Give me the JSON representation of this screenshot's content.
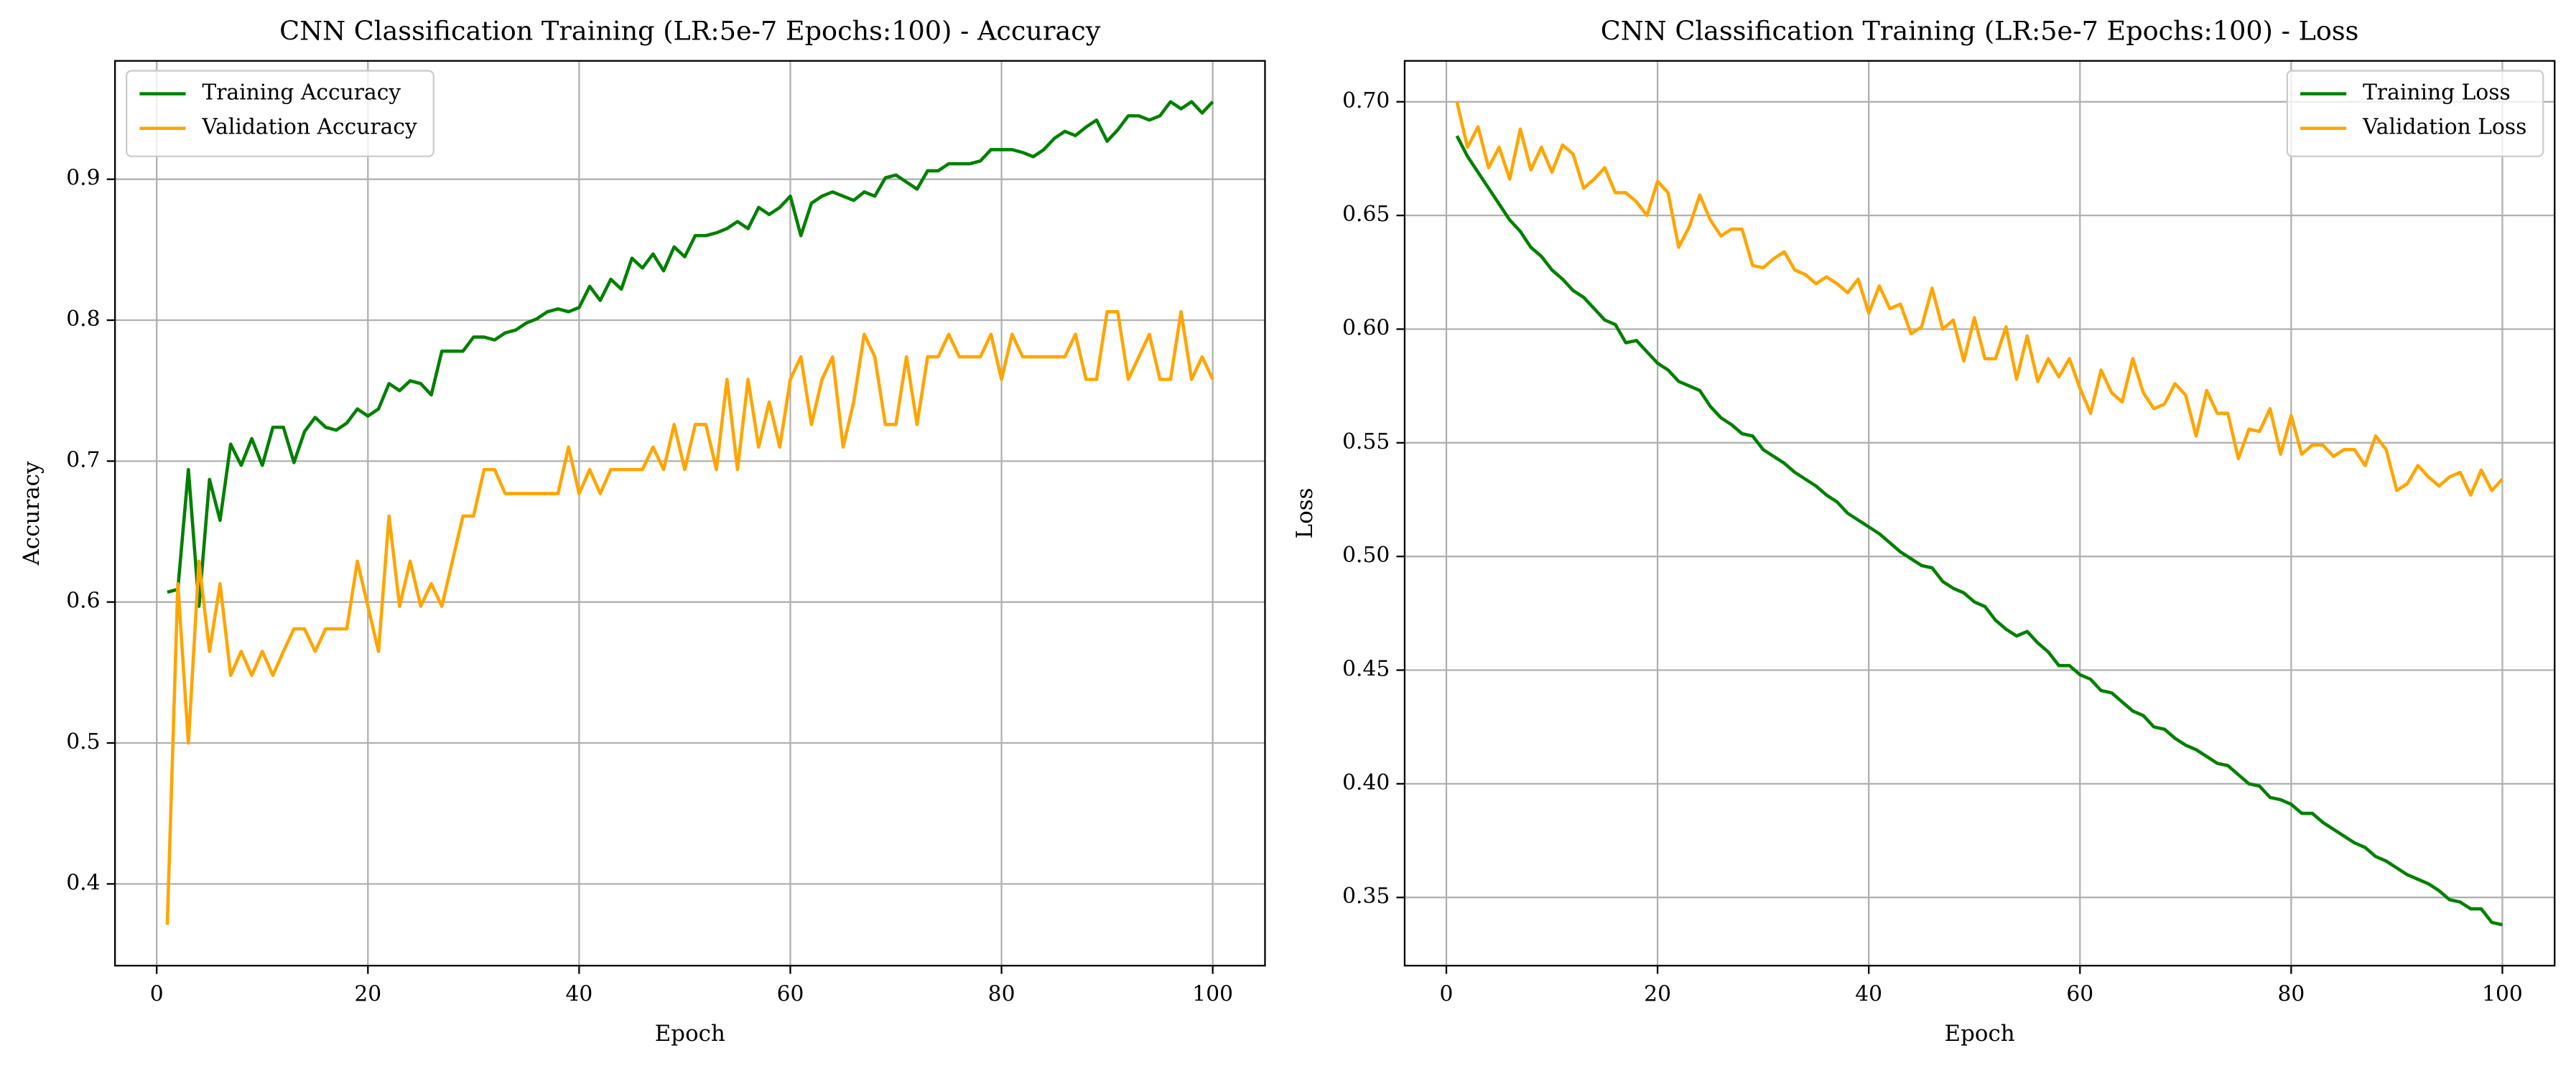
{
  "chart_data": [
    {
      "type": "line",
      "title": "CNN Classification Training (LR:5e-7 Epochs:100) - Accuracy",
      "xlabel": "Epoch",
      "ylabel": "Accuracy",
      "x": [
        1,
        2,
        3,
        4,
        5,
        6,
        7,
        8,
        9,
        10,
        11,
        12,
        13,
        14,
        15,
        16,
        17,
        18,
        19,
        20,
        21,
        22,
        23,
        24,
        25,
        26,
        27,
        28,
        29,
        30,
        31,
        32,
        33,
        34,
        35,
        36,
        37,
        38,
        39,
        40,
        41,
        42,
        43,
        44,
        45,
        46,
        47,
        48,
        49,
        50,
        51,
        52,
        53,
        54,
        55,
        56,
        57,
        58,
        59,
        60,
        61,
        62,
        63,
        64,
        65,
        66,
        67,
        68,
        69,
        70,
        71,
        72,
        73,
        74,
        75,
        76,
        77,
        78,
        79,
        80,
        81,
        82,
        83,
        84,
        85,
        86,
        87,
        88,
        89,
        90,
        91,
        92,
        93,
        94,
        95,
        96,
        97,
        98,
        99,
        100
      ],
      "series": [
        {
          "name": "Training Accuracy",
          "color": "#008000",
          "values": [
            0.607,
            0.609,
            0.694,
            0.597,
            0.687,
            0.658,
            0.712,
            0.697,
            0.716,
            0.697,
            0.724,
            0.724,
            0.699,
            0.721,
            0.731,
            0.724,
            0.722,
            0.727,
            0.737,
            0.732,
            0.737,
            0.755,
            0.75,
            0.757,
            0.755,
            0.747,
            0.778,
            0.778,
            0.778,
            0.788,
            0.788,
            0.786,
            0.791,
            0.793,
            0.798,
            0.801,
            0.806,
            0.808,
            0.806,
            0.809,
            0.824,
            0.814,
            0.829,
            0.822,
            0.844,
            0.837,
            0.847,
            0.835,
            0.852,
            0.845,
            0.86,
            0.86,
            0.862,
            0.865,
            0.87,
            0.865,
            0.88,
            0.875,
            0.88,
            0.888,
            0.86,
            0.883,
            0.888,
            0.891,
            0.888,
            0.885,
            0.891,
            0.888,
            0.901,
            0.903,
            0.898,
            0.893,
            0.906,
            0.906,
            0.911,
            0.911,
            0.911,
            0.913,
            0.921,
            0.921,
            0.921,
            0.919,
            0.916,
            0.921,
            0.929,
            0.934,
            0.931,
            0.937,
            0.942,
            0.927,
            0.935,
            0.945,
            0.945,
            0.942,
            0.945,
            0.955,
            0.95,
            0.955,
            0.947,
            0.955
          ]
        },
        {
          "name": "Validation Accuracy",
          "color": "#ffa500",
          "values": [
            0.371,
            0.613,
            0.5,
            0.629,
            0.565,
            0.613,
            0.548,
            0.565,
            0.548,
            0.565,
            0.548,
            0.565,
            0.581,
            0.581,
            0.565,
            0.581,
            0.581,
            0.581,
            0.629,
            0.597,
            0.565,
            0.661,
            0.597,
            0.629,
            0.597,
            0.613,
            0.597,
            0.629,
            0.661,
            0.661,
            0.694,
            0.694,
            0.677,
            0.677,
            0.677,
            0.677,
            0.677,
            0.677,
            0.71,
            0.677,
            0.694,
            0.677,
            0.694,
            0.694,
            0.694,
            0.694,
            0.71,
            0.694,
            0.726,
            0.694,
            0.726,
            0.726,
            0.694,
            0.758,
            0.694,
            0.758,
            0.71,
            0.742,
            0.71,
            0.758,
            0.774,
            0.726,
            0.758,
            0.774,
            0.71,
            0.742,
            0.79,
            0.774,
            0.726,
            0.726,
            0.774,
            0.726,
            0.774,
            0.774,
            0.79,
            0.774,
            0.774,
            0.774,
            0.79,
            0.758,
            0.79,
            0.774,
            0.774,
            0.774,
            0.774,
            0.774,
            0.79,
            0.758,
            0.758,
            0.806,
            0.806,
            0.758,
            0.774,
            0.79,
            0.758,
            0.758,
            0.806,
            0.758,
            0.774,
            0.758
          ]
        }
      ],
      "xlim": [
        -3.95,
        104.95
      ],
      "xticks": [
        0,
        20,
        40,
        60,
        80,
        100
      ],
      "ylim": [
        0.342,
        0.984
      ],
      "yticks": [
        0.4,
        0.5,
        0.6,
        0.7,
        0.8,
        0.9
      ],
      "grid": true,
      "legend": "upper-left"
    },
    {
      "type": "line",
      "title": "CNN Classification Training (LR:5e-7 Epochs:100) - Loss",
      "xlabel": "Epoch",
      "ylabel": "Loss",
      "x": [
        1,
        2,
        3,
        4,
        5,
        6,
        7,
        8,
        9,
        10,
        11,
        12,
        13,
        14,
        15,
        16,
        17,
        18,
        19,
        20,
        21,
        22,
        23,
        24,
        25,
        26,
        27,
        28,
        29,
        30,
        31,
        32,
        33,
        34,
        35,
        36,
        37,
        38,
        39,
        40,
        41,
        42,
        43,
        44,
        45,
        46,
        47,
        48,
        49,
        50,
        51,
        52,
        53,
        54,
        55,
        56,
        57,
        58,
        59,
        60,
        61,
        62,
        63,
        64,
        65,
        66,
        67,
        68,
        69,
        70,
        71,
        72,
        73,
        74,
        75,
        76,
        77,
        78,
        79,
        80,
        81,
        82,
        83,
        84,
        85,
        86,
        87,
        88,
        89,
        90,
        91,
        92,
        93,
        94,
        95,
        96,
        97,
        98,
        99,
        100
      ],
      "series": [
        {
          "name": "Training Loss",
          "color": "#008000",
          "values": [
            0.685,
            0.676,
            0.669,
            0.662,
            0.655,
            0.648,
            0.643,
            0.636,
            0.632,
            0.626,
            0.622,
            0.617,
            0.614,
            0.609,
            0.604,
            0.602,
            0.594,
            0.595,
            0.59,
            0.585,
            0.582,
            0.577,
            0.575,
            0.573,
            0.566,
            0.561,
            0.558,
            0.554,
            0.553,
            0.547,
            0.544,
            0.541,
            0.537,
            0.534,
            0.531,
            0.527,
            0.524,
            0.519,
            0.516,
            0.513,
            0.51,
            0.506,
            0.502,
            0.499,
            0.496,
            0.495,
            0.489,
            0.486,
            0.484,
            0.48,
            0.478,
            0.472,
            0.468,
            0.465,
            0.467,
            0.462,
            0.458,
            0.452,
            0.452,
            0.448,
            0.446,
            0.441,
            0.44,
            0.436,
            0.432,
            0.43,
            0.425,
            0.424,
            0.42,
            0.417,
            0.415,
            0.412,
            0.409,
            0.408,
            0.404,
            0.4,
            0.399,
            0.394,
            0.393,
            0.391,
            0.387,
            0.387,
            0.383,
            0.38,
            0.377,
            0.374,
            0.372,
            0.368,
            0.366,
            0.363,
            0.36,
            0.358,
            0.356,
            0.353,
            0.349,
            0.348,
            0.345,
            0.345,
            0.339,
            0.338
          ]
        },
        {
          "name": "Validation Loss",
          "color": "#ffa500",
          "values": [
            0.7,
            0.68,
            0.689,
            0.671,
            0.68,
            0.666,
            0.688,
            0.67,
            0.68,
            0.669,
            0.681,
            0.677,
            0.662,
            0.666,
            0.671,
            0.66,
            0.66,
            0.656,
            0.65,
            0.665,
            0.66,
            0.636,
            0.645,
            0.659,
            0.648,
            0.641,
            0.644,
            0.644,
            0.628,
            0.627,
            0.631,
            0.634,
            0.626,
            0.624,
            0.62,
            0.623,
            0.62,
            0.616,
            0.622,
            0.607,
            0.619,
            0.609,
            0.611,
            0.598,
            0.601,
            0.618,
            0.6,
            0.604,
            0.586,
            0.605,
            0.587,
            0.587,
            0.601,
            0.578,
            0.597,
            0.577,
            0.587,
            0.579,
            0.587,
            0.574,
            0.563,
            0.582,
            0.572,
            0.568,
            0.587,
            0.572,
            0.565,
            0.567,
            0.576,
            0.571,
            0.553,
            0.573,
            0.563,
            0.563,
            0.543,
            0.556,
            0.555,
            0.565,
            0.545,
            0.562,
            0.545,
            0.549,
            0.549,
            0.544,
            0.547,
            0.547,
            0.54,
            0.553,
            0.547,
            0.529,
            0.532,
            0.54,
            0.535,
            0.531,
            0.535,
            0.537,
            0.527,
            0.538,
            0.529,
            0.534
          ]
        }
      ],
      "xlim": [
        -3.95,
        104.95
      ],
      "xticks": [
        0,
        20,
        40,
        60,
        80,
        100
      ],
      "ylim": [
        0.32,
        0.718
      ],
      "yticks": [
        {
          "value": 0.35,
          "label": "0.35"
        },
        {
          "value": 0.4,
          "label": "0.40"
        },
        {
          "value": 0.45,
          "label": "0.45"
        },
        {
          "value": 0.5,
          "label": "0.50"
        },
        {
          "value": 0.55,
          "label": "0.55"
        },
        {
          "value": 0.6,
          "label": "0.60"
        },
        {
          "value": 0.65,
          "label": "0.65"
        },
        {
          "value": 0.7,
          "label": "0.70"
        }
      ],
      "grid": true,
      "legend": "upper-right"
    }
  ]
}
